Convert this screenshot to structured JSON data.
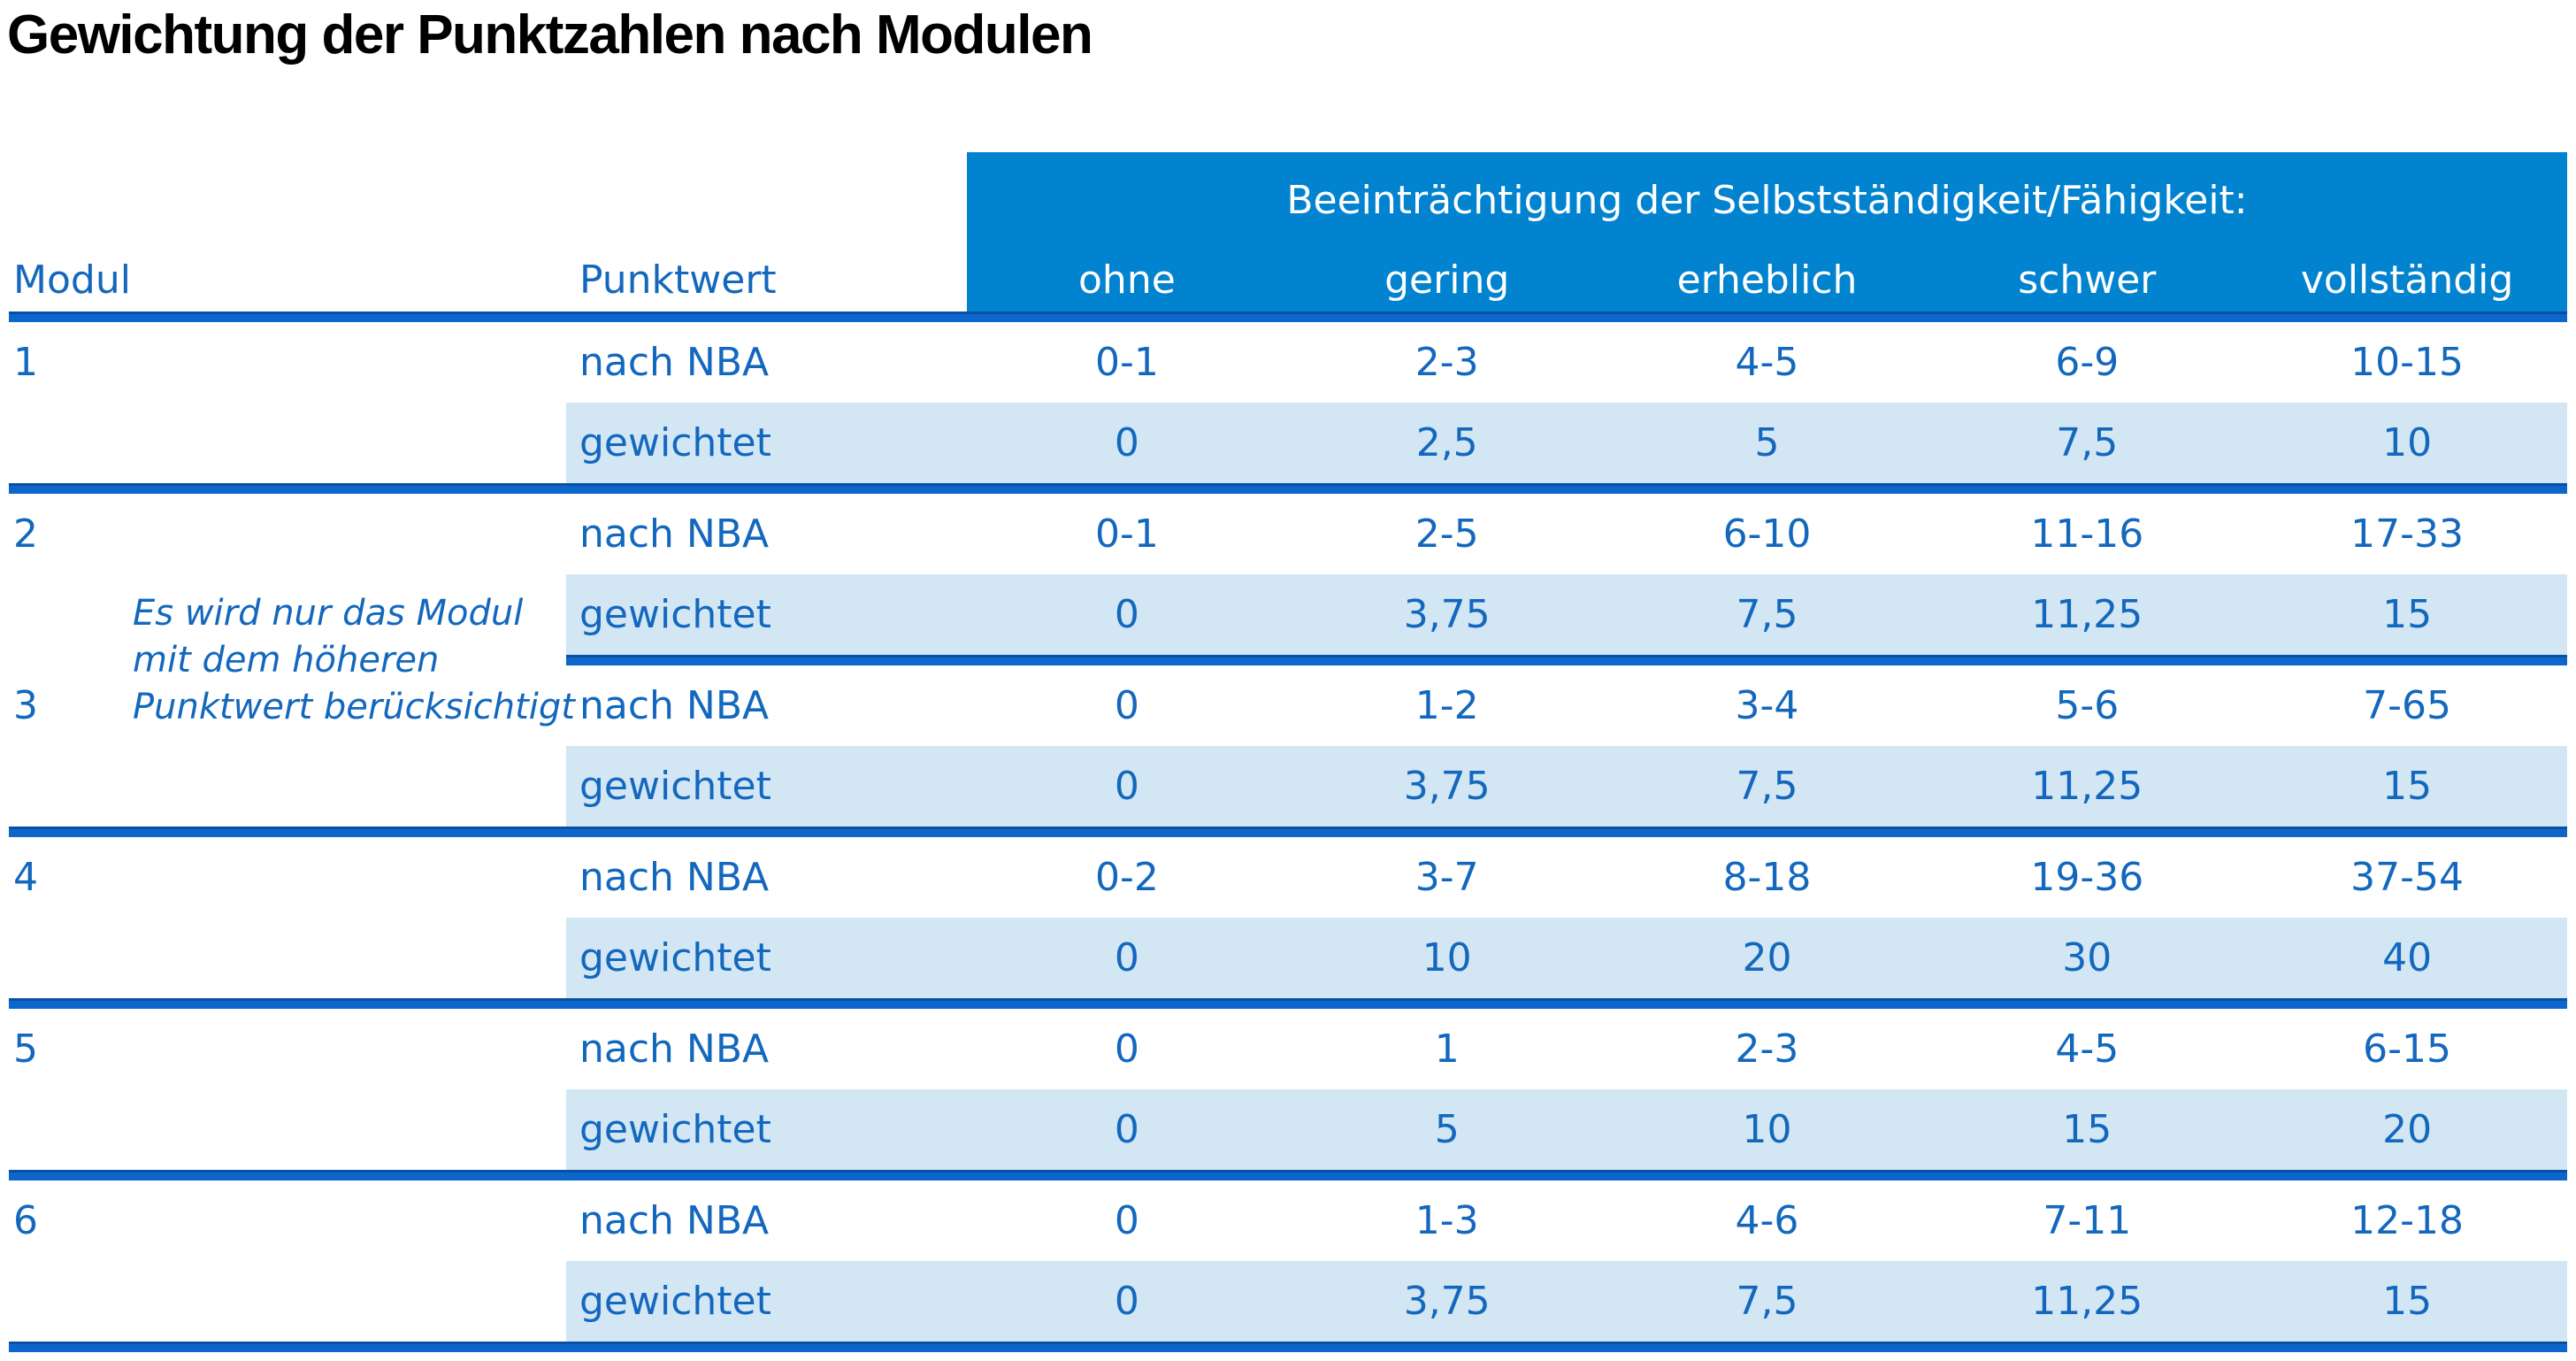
{
  "title": "Gewichtung der Punktzahlen nach Modulen",
  "table": {
    "header": {
      "group_label": "Beeinträchtigung der Selbstständigkeit/Fähigkeit:",
      "col_modul": "Modul",
      "col_punktwert": "Punktwert",
      "severity_labels": [
        "ohne",
        "gering",
        "erheblich",
        "schwer",
        "vollständig"
      ]
    },
    "row_labels": {
      "nba": "nach NBA",
      "weighted": "gewichtet"
    },
    "note": {
      "lines": [
        "Es wird nur das Modul",
        "mit dem höheren",
        "Punktwert berücksichtigt"
      ]
    },
    "modules": [
      {
        "id": "1",
        "nba": [
          "0-1",
          "2-3",
          "4-5",
          "6-9",
          "10-15"
        ],
        "weighted": [
          "0",
          "2,5",
          "5",
          "7,5",
          "10"
        ]
      },
      {
        "id": "2",
        "nba": [
          "0-1",
          "2-5",
          "6-10",
          "11-16",
          "17-33"
        ],
        "weighted": [
          "0",
          "3,75",
          "7,5",
          "11,25",
          "15"
        ]
      },
      {
        "id": "3",
        "nba": [
          "0",
          "1-2",
          "3-4",
          "5-6",
          "7-65"
        ],
        "weighted": [
          "0",
          "3,75",
          "7,5",
          "11,25",
          "15"
        ]
      },
      {
        "id": "4",
        "nba": [
          "0-2",
          "3-7",
          "8-18",
          "19-36",
          "37-54"
        ],
        "weighted": [
          "0",
          "10",
          "20",
          "30",
          "40"
        ]
      },
      {
        "id": "5",
        "nba": [
          "0",
          "1",
          "2-3",
          "4-5",
          "6-15"
        ],
        "weighted": [
          "0",
          "5",
          "10",
          "15",
          "20"
        ]
      },
      {
        "id": "6",
        "nba": [
          "0",
          "1-3",
          "4-6",
          "7-11",
          "12-18"
        ],
        "weighted": [
          "0",
          "3,75",
          "7,5",
          "11,25",
          "15"
        ]
      }
    ],
    "colors": {
      "header_bg": "#0283cf",
      "separator_line": "#0d66cc",
      "text_blue": "#1368be",
      "weighted_row_bg": "#d3e6f4",
      "title_color": "#000000"
    }
  }
}
